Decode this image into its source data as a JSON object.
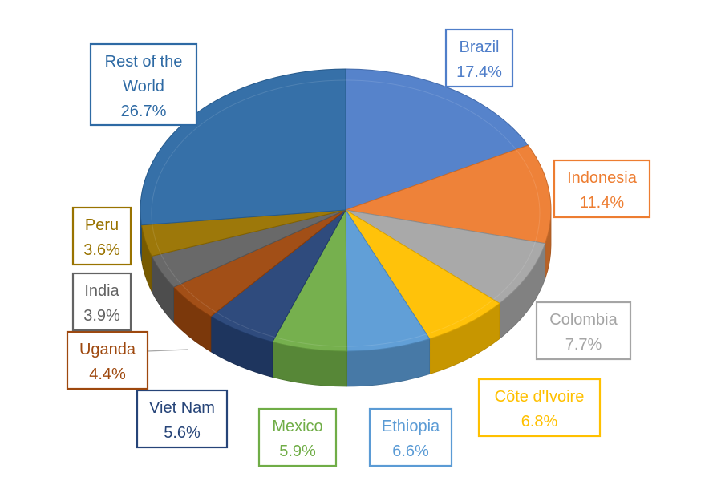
{
  "chart_data": {
    "type": "pie",
    "title": "",
    "slices": [
      {
        "label": "Brazil",
        "value": 17.4,
        "pct": "17.4%",
        "color": "#4f7ec9"
      },
      {
        "label": "Indonesia",
        "value": 11.4,
        "pct": "11.4%",
        "color": "#ed7d31"
      },
      {
        "label": "Colombia",
        "value": 7.7,
        "pct": "7.7%",
        "color": "#a5a5a5"
      },
      {
        "label": "Côte d'Ivoire",
        "value": 6.8,
        "pct": "6.8%",
        "color": "#ffc000"
      },
      {
        "label": "Ethiopia",
        "value": 6.6,
        "pct": "6.6%",
        "color": "#5b9bd5"
      },
      {
        "label": "Mexico",
        "value": 5.9,
        "pct": "5.9%",
        "color": "#70ad47"
      },
      {
        "label": "Viet Nam",
        "value": 5.6,
        "pct": "5.6%",
        "color": "#264478"
      },
      {
        "label": "Uganda",
        "value": 4.4,
        "pct": "4.4%",
        "color": "#9e480e"
      },
      {
        "label": "India",
        "value": 3.9,
        "pct": "3.9%",
        "color": "#636363"
      },
      {
        "label": "Peru",
        "value": 3.6,
        "pct": "3.6%",
        "color": "#997300"
      },
      {
        "label": "Rest of the World",
        "value": 26.7,
        "pct": "26.7%",
        "color": "#2e6aa4"
      }
    ],
    "legend": "none",
    "style": "3d-pie"
  }
}
